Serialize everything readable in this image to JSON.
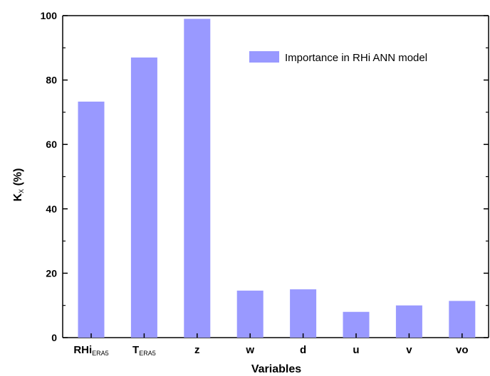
{
  "chart_data": {
    "type": "bar",
    "categories": [
      {
        "main": "RHi",
        "sub": "ERA5"
      },
      {
        "main": "T",
        "sub": "ERA5"
      },
      {
        "main": "z",
        "sub": ""
      },
      {
        "main": "w",
        "sub": ""
      },
      {
        "main": "d",
        "sub": ""
      },
      {
        "main": "u",
        "sub": ""
      },
      {
        "main": "v",
        "sub": ""
      },
      {
        "main": "vo",
        "sub": ""
      }
    ],
    "series": [
      {
        "name": "Importance in RHi ANN model",
        "values": [
          73.3,
          87,
          99,
          14.6,
          15,
          8,
          10,
          11.4
        ],
        "color": "#9999ff"
      }
    ],
    "xlabel": "Variables",
    "ylabel": {
      "main": "K",
      "sub": "X",
      "rest": " (%)"
    },
    "ylim": [
      0,
      100
    ],
    "yticks": [
      "0",
      "20",
      "40",
      "60",
      "80",
      "100"
    ],
    "grid": false,
    "legend_position": "top-right"
  }
}
